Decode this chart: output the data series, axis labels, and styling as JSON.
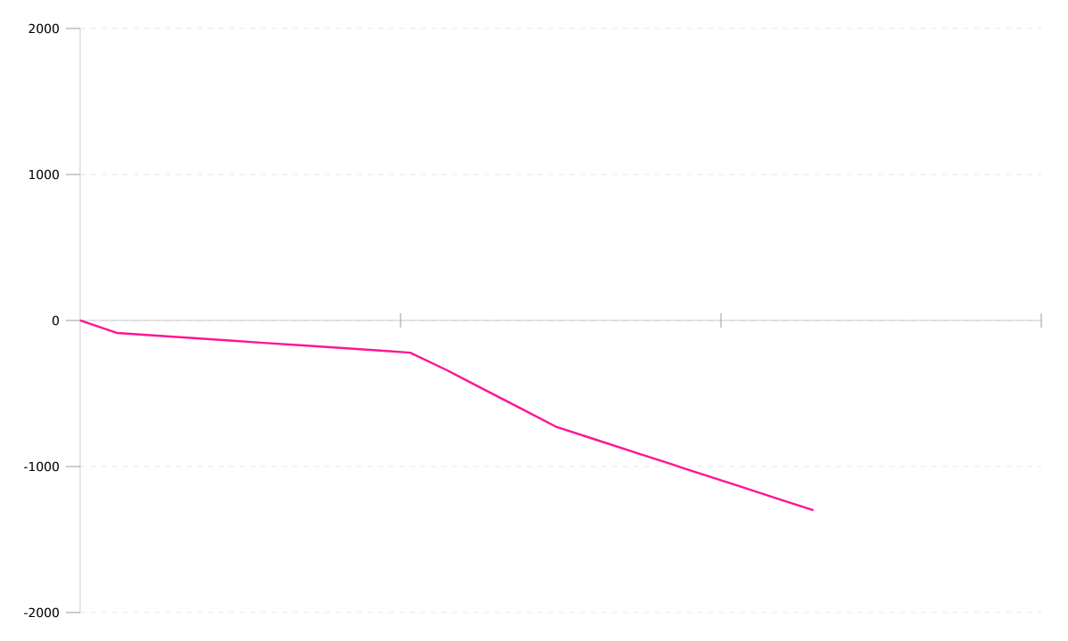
{
  "chart_data": {
    "type": "line",
    "categories": [
      null,
      null,
      null,
      null,
      null,
      null,
      null,
      null,
      null,
      null,
      null,
      null,
      null,
      null,
      null,
      null,
      null,
      null,
      null,
      null,
      null
    ],
    "series": [
      {
        "color": "#ff1493",
        "values": [
          0,
          -85,
          -102,
          -119,
          -136,
          -153,
          -169,
          -186,
          -203,
          -220,
          -340,
          -470,
          -600,
          -730,
          -811,
          -893,
          -974,
          -1056,
          -1137,
          -1219,
          -1300
        ]
      }
    ],
    "ylim": [
      -2000,
      2000
    ],
    "yticks": [
      -2000,
      -1000,
      0,
      1000,
      2000
    ],
    "grid": "y",
    "tick_labels": "y",
    "marker": "none",
    "line_style": "solid"
  }
}
